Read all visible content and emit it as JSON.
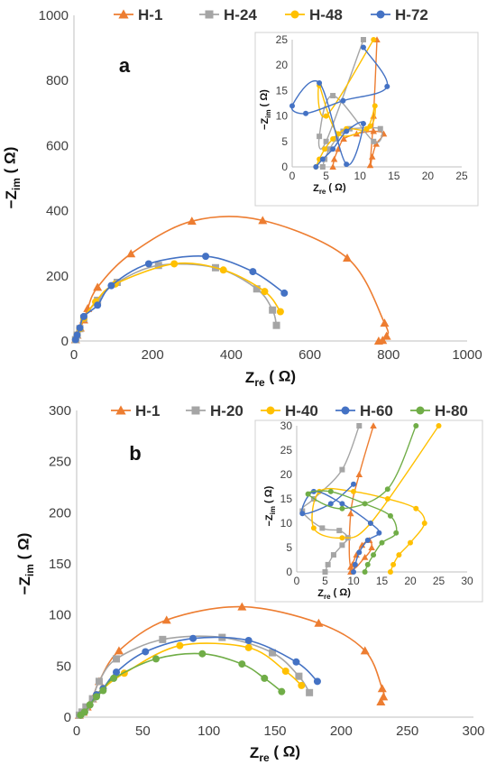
{
  "colors": {
    "H-1": "#ED7D31",
    "H-20": "#A5A5A5",
    "H-24": "#A5A5A5",
    "H-40": "#FFC000",
    "H-48": "#FFC000",
    "H-60": "#4472C4",
    "H-72": "#4472C4",
    "H-80": "#70AD47"
  },
  "chart_data": [
    {
      "type": "scatter",
      "panel_label": "a",
      "ylabel_main": "−Z",
      "ylabel_sub": "im",
      "ylabel_unit": "( Ω)",
      "xlabel_main": "Z",
      "xlabel_sub": "re",
      "xlabel_unit": "( Ω)",
      "xlim": [
        0,
        1000
      ],
      "ylim": [
        0,
        1000
      ],
      "xticks": [
        0,
        200,
        400,
        600,
        800,
        1000
      ],
      "yticks": [
        0,
        200,
        400,
        600,
        800,
        1000
      ],
      "legend": "top",
      "series": [
        {
          "name": "H-1",
          "marker": "triangle",
          "x": [
            4,
            8,
            16,
            25,
            35,
            60,
            145,
            300,
            480,
            695,
            790,
            795,
            785,
            775
          ],
          "y": [
            4,
            18,
            40,
            65,
            100,
            165,
            268,
            368,
            370,
            255,
            55,
            15,
            2,
            0
          ]
        },
        {
          "name": "H-24",
          "marker": "square",
          "x": [
            4,
            8,
            15,
            25,
            60,
            110,
            215,
            360,
            465,
            505,
            515
          ],
          "y": [
            4,
            18,
            38,
            70,
            125,
            180,
            232,
            225,
            160,
            95,
            48
          ]
        },
        {
          "name": "H-48",
          "marker": "circle",
          "x": [
            4,
            8,
            15,
            25,
            55,
            105,
            255,
            380,
            485,
            525
          ],
          "y": [
            4,
            18,
            38,
            70,
            120,
            175,
            237,
            218,
            152,
            90
          ]
        },
        {
          "name": "H-72",
          "marker": "circle",
          "x": [
            4,
            8,
            15,
            25,
            60,
            95,
            190,
            335,
            455,
            535
          ],
          "y": [
            4,
            18,
            40,
            75,
            110,
            170,
            237,
            260,
            213,
            147
          ]
        }
      ],
      "inset": {
        "xlabel_main": "Z",
        "xlabel_sub": "re",
        "xlabel_unit": "( Ω)",
        "ylabel_main": "−Z",
        "ylabel_sub": "im",
        "ylabel_unit": "( Ω)",
        "xlim": [
          0,
          25
        ],
        "ylim": [
          0,
          25
        ],
        "xticks": [
          0,
          5,
          10,
          15,
          20,
          25
        ],
        "yticks": [
          0,
          5,
          10,
          15,
          20,
          25
        ],
        "series": [
          {
            "name": "H-1",
            "marker": "triangle",
            "x": [
              6,
              6.2,
              6.8,
              7.6,
              9.5,
              12,
              13.5,
              12.4,
              11.8,
              11.5,
              12,
              12.5
            ],
            "y": [
              0,
              1.5,
              3.5,
              5.5,
              6.5,
              7,
              6.5,
              4.5,
              2,
              0.3,
              10,
              25
            ]
          },
          {
            "name": "H-24",
            "marker": "square",
            "x": [
              4.5,
              4.8,
              5.5,
              6.5,
              7.5,
              8.5,
              13,
              12,
              6,
              4,
              5,
              10.5
            ],
            "y": [
              0,
              1.5,
              3.5,
              5.5,
              7,
              7.5,
              7.5,
              5,
              14,
              6,
              5,
              25
            ]
          },
          {
            "name": "H-48",
            "marker": "circle",
            "x": [
              3.5,
              4,
              4.8,
              6,
              8,
              11,
              12.2,
              11.5,
              6.8,
              4,
              5,
              12
            ],
            "y": [
              0,
              1.5,
              3.5,
              5.5,
              7.5,
              7.5,
              12,
              8,
              6.5,
              16,
              10,
              25
            ]
          },
          {
            "name": "H-72",
            "marker": "circle",
            "x": [
              3.5,
              4.5,
              6,
              8,
              10.5,
              8,
              4,
              0,
              2,
              7.5,
              14,
              10.5
            ],
            "y": [
              0,
              1.5,
              3.5,
              7,
              8.5,
              0.5,
              16.5,
              12,
              10.5,
              13,
              15.8,
              23.5
            ]
          }
        ]
      }
    },
    {
      "type": "scatter",
      "panel_label": "b",
      "ylabel_main": "−Z",
      "ylabel_sub": "im",
      "ylabel_unit": "( Ω)",
      "xlabel_main": "Z",
      "xlabel_sub": "re",
      "xlabel_unit": "( Ω)",
      "xlim": [
        0,
        300
      ],
      "ylim": [
        0,
        300
      ],
      "xticks": [
        0,
        50,
        100,
        150,
        200,
        250,
        300
      ],
      "yticks": [
        0,
        50,
        100,
        150,
        200,
        250,
        300
      ],
      "legend": "top",
      "series": [
        {
          "name": "H-1",
          "marker": "triangle",
          "x": [
            2,
            5,
            8,
            12,
            17,
            32,
            68,
            125,
            183,
            218,
            231,
            232,
            230
          ],
          "y": [
            2,
            5,
            10,
            18,
            35,
            65,
            95,
            108,
            92,
            65,
            28,
            20,
            15
          ]
        },
        {
          "name": "H-20",
          "marker": "square",
          "x": [
            2,
            4,
            7,
            12,
            17,
            30,
            65,
            110,
            148,
            168,
            176
          ],
          "y": [
            2,
            5,
            10,
            18,
            35,
            57,
            76,
            78,
            63,
            40,
            24
          ]
        },
        {
          "name": "H-40",
          "marker": "circle",
          "x": [
            3,
            6,
            10,
            15,
            20,
            36,
            78,
            130,
            158,
            170
          ],
          "y": [
            2,
            5,
            12,
            22,
            28,
            43,
            70,
            68,
            45,
            31
          ]
        },
        {
          "name": "H-60",
          "marker": "circle",
          "x": [
            3,
            6,
            10,
            15,
            20,
            30,
            52,
            88,
            130,
            166,
            182
          ],
          "y": [
            2,
            5,
            12,
            22,
            28,
            44,
            64,
            77,
            75,
            54,
            35
          ]
        },
        {
          "name": "H-80",
          "marker": "circle",
          "x": [
            3,
            6,
            10,
            15,
            20,
            28,
            60,
            95,
            125,
            142,
            155
          ],
          "y": [
            2,
            5,
            12,
            20,
            26,
            38,
            57,
            62,
            52,
            38,
            25
          ]
        }
      ],
      "inset": {
        "xlabel_main": "Z",
        "xlabel_sub": "re",
        "xlabel_unit": "( Ω)",
        "ylabel_main": "−Z",
        "ylabel_sub": "im",
        "ylabel_unit": "( Ω)",
        "xlim": [
          0,
          30
        ],
        "ylim": [
          0,
          30
        ],
        "xticks": [
          0,
          5,
          10,
          15,
          20,
          25,
          30
        ],
        "yticks": [
          0,
          5,
          10,
          15,
          20,
          25,
          30
        ],
        "series": [
          {
            "name": "H-1",
            "marker": "triangle",
            "x": [
              9.5,
              9.8,
              10.5,
              11.5,
              12.8,
              13.2,
              12,
              9.5,
              9.5,
              11,
              13.5
            ],
            "y": [
              0,
              1.5,
              3.5,
              5.5,
              6.5,
              5,
              3,
              1,
              12,
              20,
              30
            ]
          },
          {
            "name": "H-20",
            "marker": "square",
            "x": [
              5,
              5.5,
              6.5,
              8,
              9,
              7.5,
              4.5,
              1,
              3,
              8,
              11
            ],
            "y": [
              0,
              1.5,
              3.5,
              5.5,
              7,
              8.5,
              9,
              12.5,
              15,
              21,
              30
            ]
          },
          {
            "name": "H-40",
            "marker": "circle",
            "x": [
              16.5,
              17,
              18,
              20,
              22.5,
              21,
              16,
              10,
              4,
              3,
              8,
              13,
              25
            ],
            "y": [
              0,
              1.5,
              3.5,
              6,
              10,
              13,
              15,
              16.5,
              16.5,
              9,
              7,
              10,
              30
            ]
          },
          {
            "name": "H-60",
            "marker": "circle",
            "x": [
              10,
              10.3,
              11,
              12.5,
              14.5,
              13,
              8,
              3,
              1,
              6,
              10
            ],
            "y": [
              0,
              1.5,
              4,
              6.5,
              8,
              10,
              14,
              16.5,
              12,
              14,
              18
            ]
          },
          {
            "name": "H-80",
            "marker": "circle",
            "x": [
              12,
              12.5,
              13.5,
              15,
              17.5,
              16.5,
              12,
              6,
              2,
              8,
              16,
              21
            ],
            "y": [
              0,
              1.5,
              3.5,
              6,
              8,
              11.5,
              14,
              16.5,
              16,
              13,
              17,
              30
            ]
          }
        ]
      }
    }
  ]
}
